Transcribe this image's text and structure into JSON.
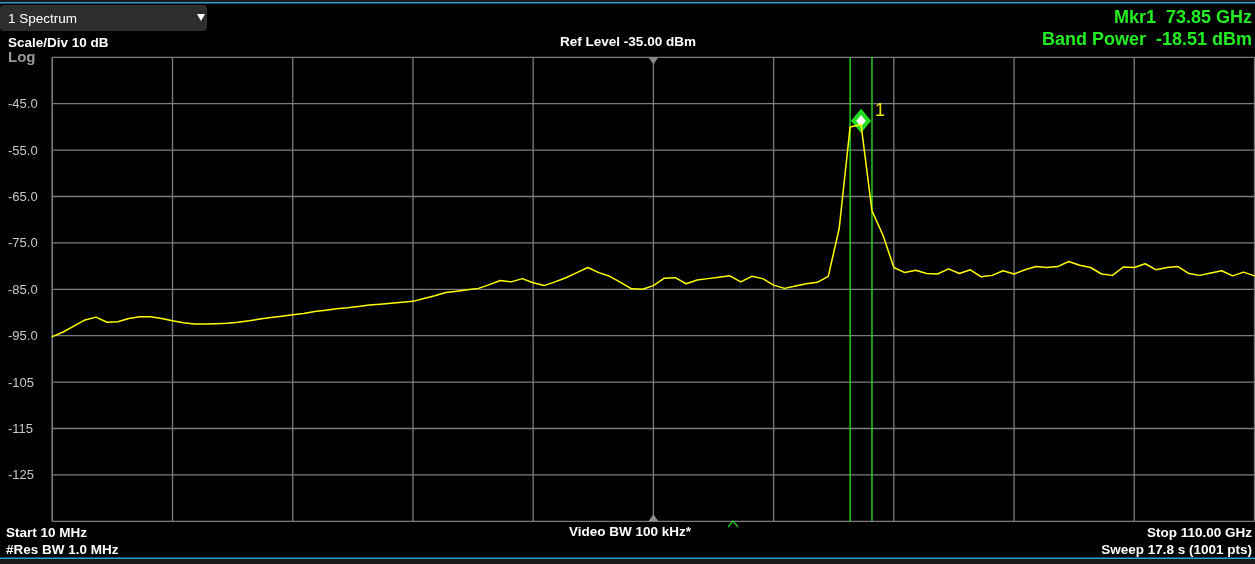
{
  "chart_data": {
    "type": "line",
    "title": "1 Spectrum",
    "annotations": [
      "Scale/Div 10 dB",
      "Log",
      "Ref Level -35.00 dBm",
      "Mkr1  73.85 GHz",
      "Band Power  -18.51 dBm",
      "Start 10 MHz",
      "#Res BW 1.0 MHz",
      "Video BW 100 kHz*",
      "Stop 110.00 GHz",
      "Sweep 17.8 s (1001 pts)"
    ],
    "categories": [
      null,
      null,
      null,
      null,
      null,
      null,
      null,
      null,
      null,
      null,
      null,
      null,
      null,
      null,
      null,
      null,
      null,
      null,
      null,
      null,
      null,
      null,
      null,
      null,
      null,
      null,
      null,
      null,
      null,
      null,
      null,
      null,
      null,
      null,
      null,
      null,
      null,
      null,
      null,
      null,
      null,
      null,
      null,
      null,
      null,
      null,
      null,
      null,
      null,
      null,
      null,
      null,
      null,
      null,
      null,
      null,
      null,
      null,
      null,
      null,
      null,
      null,
      null,
      null,
      null,
      null,
      null,
      null,
      null,
      null,
      null,
      null,
      null,
      null,
      null,
      null,
      null,
      null,
      null,
      null,
      null,
      null,
      null,
      null,
      null,
      null,
      null,
      null,
      null,
      null,
      null,
      null,
      null,
      null,
      null,
      null,
      null,
      null,
      null,
      null,
      null,
      null,
      null,
      null,
      null,
      null,
      null,
      null,
      null,
      null,
      null
    ],
    "ylim": [
      -135,
      -35
    ],
    "yticks": [
      {
        "value": -35,
        "label": null
      },
      {
        "value": -45,
        "label": "-45.0"
      },
      {
        "value": -55,
        "label": "-55.0"
      },
      {
        "value": -65,
        "label": "-65.0"
      },
      {
        "value": -75,
        "label": "-75.0"
      },
      {
        "value": -85,
        "label": "-85.0"
      },
      {
        "value": -95,
        "label": "-95.0"
      },
      -105,
      -115,
      -125,
      {
        "value": -135,
        "label": null
      }
    ],
    "tick_labels": "y",
    "grid": true,
    "series": [
      {
        "type": "scatter",
        "name": "1",
        "color": "#22dd22",
        "marker": "diamond",
        "values": [
          null,
          null,
          null,
          null,
          null,
          null,
          null,
          null,
          null,
          null,
          null,
          null,
          null,
          null,
          null,
          null,
          null,
          null,
          null,
          null,
          null,
          null,
          null,
          null,
          null,
          null,
          null,
          null,
          null,
          null,
          null,
          null,
          null,
          null,
          null,
          null,
          null,
          null,
          null,
          null,
          null,
          null,
          null,
          null,
          null,
          null,
          null,
          null,
          null,
          null,
          null,
          null,
          null,
          null,
          null,
          null,
          null,
          null,
          null,
          null,
          null,
          null,
          null,
          null,
          null,
          null,
          null,
          null,
          null,
          null,
          null,
          null,
          null,
          null,
          -48.7,
          null,
          null,
          null,
          null,
          null,
          null,
          null,
          null,
          null,
          null,
          null,
          null,
          null,
          null,
          null,
          null,
          null,
          null,
          null,
          null,
          null,
          null,
          null,
          null,
          null,
          null,
          null,
          null,
          null,
          null,
          null,
          null,
          null,
          null,
          null,
          null
        ]
      },
      {
        "color": "#ffff00",
        "values": [
          -95.2,
          -94.2,
          -92.9,
          -91.6,
          -91.0,
          -92.1,
          -92.0,
          -91.3,
          -90.9,
          -90.9,
          -91.3,
          -91.8,
          -92.2,
          -92.5,
          -92.5,
          -92.4,
          -92.3,
          -92.1,
          -91.8,
          -91.4,
          -91.1,
          -90.8,
          -90.5,
          -90.2,
          -89.8,
          -89.5,
          -89.2,
          -89.0,
          -88.7,
          -88.4,
          -88.2,
          -88.0,
          -87.8,
          -87.6,
          -87.0,
          -86.4,
          -85.7,
          -85.4,
          -85.1,
          -84.8,
          -84.0,
          -83.1,
          -83.4,
          -82.7,
          -83.6,
          -84.2,
          -83.4,
          -82.5,
          -81.4,
          -80.3,
          -81.4,
          -82.2,
          -83.5,
          -84.9,
          -85.0,
          -84.2,
          -82.6,
          -82.5,
          -83.8,
          -83.0,
          -82.7,
          -82.4,
          -82.1,
          -83.4,
          -82.2,
          -82.7,
          -84.1,
          -84.8,
          -84.3,
          -83.8,
          -83.5,
          -82.2,
          -71.9,
          -50.0,
          -49.5,
          -68.1,
          -73.3,
          -80.3,
          -81.4,
          -80.9,
          -81.6,
          -81.7,
          -80.6,
          -81.6,
          -80.8,
          -82.3,
          -82.0,
          -81.0,
          -81.7,
          -80.8,
          -80.1,
          -80.3,
          -80.1,
          -79.0,
          -79.8,
          -80.3,
          -81.7,
          -82.0,
          -80.2,
          -80.3,
          -79.5,
          -80.8,
          -80.3,
          -80.1,
          -81.6,
          -82.0,
          -81.5,
          -81.0,
          -82.1,
          -81.3,
          -82.1
        ]
      }
    ]
  }
}
